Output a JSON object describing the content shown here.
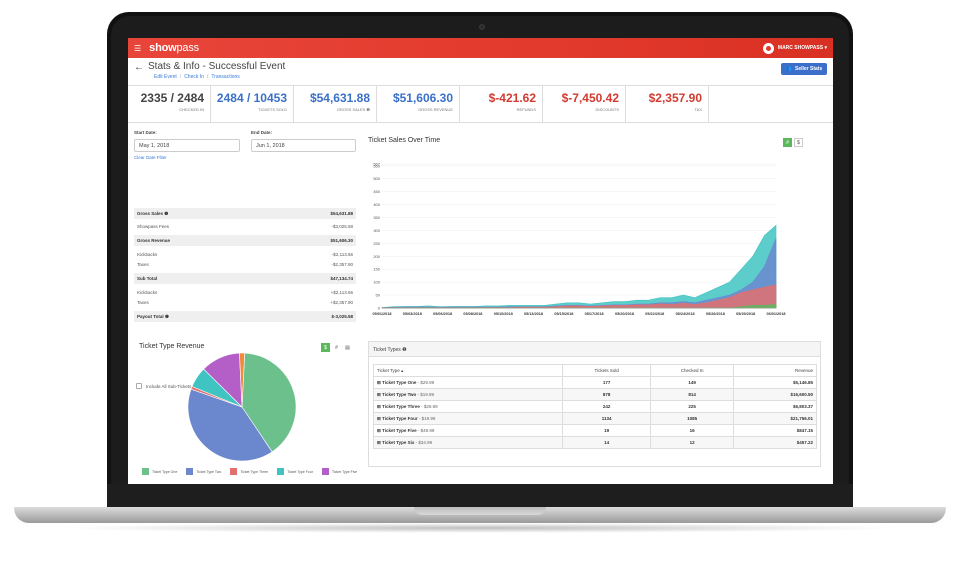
{
  "topbar": {
    "logo_bold": "show",
    "logo_light": "pass",
    "user_name": "MARC SHOWPASS ▾"
  },
  "header": {
    "title": "Stats & Info - Successful Event",
    "crumbs": [
      "Edit Event",
      "Check In",
      "Transactions"
    ],
    "seller_button": "Seller Stats"
  },
  "stats": [
    {
      "value": "2335 / 2484",
      "label": "CHECKED IN",
      "color": "dark"
    },
    {
      "value": "2484 / 10453",
      "label": "TICKETS SOLD",
      "color": "blue"
    },
    {
      "value": "$54,631.88",
      "label": "GROSS SALES ❶",
      "color": "blue"
    },
    {
      "value": "$51,606.30",
      "label": "GROSS REVENUE",
      "color": "blue"
    },
    {
      "value": "$-421.62",
      "label": "REFUNDS",
      "color": "red"
    },
    {
      "value": "$-7,450.42",
      "label": "DISCOUNTS",
      "color": "red"
    },
    {
      "value": "$2,357.90",
      "label": "TAX",
      "color": "red"
    }
  ],
  "filters": {
    "start_label": "Start Date:",
    "start_value": "May 1, 2018",
    "end_label": "End Date:",
    "end_value": "Jun 1, 2018",
    "clear": "Clear Date Filter"
  },
  "summary": [
    {
      "label": "Gross Sales ❶",
      "value": "$54,631.88",
      "bold": true,
      "top": 78
    },
    {
      "label": "Showpass Fees",
      "value": "-$3,025.58",
      "bold": false,
      "top": 91
    },
    {
      "label": "Gross Revenue",
      "value": "$51,606.30",
      "bold": true,
      "top": 105
    },
    {
      "label": "Kickbacks",
      "value": "-$2,113.66",
      "bold": false,
      "top": 119
    },
    {
      "label": "Taxes",
      "value": "-$2,357.90",
      "bold": false,
      "top": 129
    },
    {
      "label": "Sub Total",
      "value": "$47,134.74",
      "bold": true,
      "top": 143
    },
    {
      "label": "Kickbacks",
      "value": "+$2,113.66",
      "bold": false,
      "top": 157
    },
    {
      "label": "Taxes",
      "value": "+$2,357.90",
      "bold": false,
      "top": 167
    },
    {
      "label": "Payout Total ❶",
      "value": "$-3,025.58",
      "bold": true,
      "top": 181
    }
  ],
  "include_sub": "Include All Sub-Tickets in Total Count",
  "chart_data": [
    {
      "type": "area",
      "title": "Ticket Sales Over Time",
      "ylim": [
        0,
        557
      ],
      "yticks": [
        "0",
        "50",
        "100",
        "150",
        "200",
        "250",
        "300",
        "350",
        "400",
        "450",
        "500",
        "550",
        "557"
      ],
      "x_labels": [
        "05/01/2018",
        "05/03/2018",
        "05/06/2018",
        "05/08/2018",
        "05/10/2018",
        "05/13/2018",
        "05/15/2018",
        "05/17/2018",
        "05/20/2018",
        "05/22/2018",
        "05/24/2018",
        "05/26/2018",
        "05/29/2018",
        "06/01/2018"
      ],
      "series": [
        {
          "values": [
            2,
            5,
            6,
            6,
            8,
            5,
            6,
            6,
            6,
            8,
            8,
            10,
            10,
            10,
            10,
            15,
            20,
            20,
            15,
            20,
            25,
            25,
            30,
            30,
            40,
            40,
            50,
            40,
            60,
            80,
            100,
            150,
            200,
            280,
            320
          ],
          "color": "#3fc4c2"
        },
        {
          "values": [
            1,
            3,
            4,
            4,
            4,
            3,
            3,
            4,
            4,
            4,
            4,
            5,
            5,
            5,
            5,
            8,
            10,
            10,
            8,
            10,
            12,
            12,
            15,
            15,
            20,
            20,
            25,
            20,
            30,
            40,
            50,
            70,
            100,
            160,
            270
          ],
          "color": "#6b88cf"
        },
        {
          "values": [
            0,
            1,
            1,
            1,
            1,
            1,
            1,
            1,
            1,
            2,
            2,
            2,
            3,
            3,
            3,
            5,
            8,
            8,
            6,
            8,
            10,
            10,
            12,
            12,
            16,
            14,
            18,
            14,
            20,
            30,
            40,
            60,
            70,
            80,
            90
          ],
          "color": "#e36f6f"
        },
        {
          "values": [
            0,
            0,
            0,
            0,
            0,
            0,
            0,
            0,
            0,
            0,
            0,
            0,
            0,
            0,
            0,
            0,
            0,
            0,
            0,
            0,
            0,
            0,
            0,
            0,
            0,
            0,
            0,
            0,
            0,
            0,
            0,
            5,
            10,
            10,
            14
          ],
          "color": "#5cb85c"
        }
      ],
      "toggles": [
        "#",
        "$"
      ]
    },
    {
      "type": "pie",
      "title": "Ticket Type Revenue",
      "categories": [
        "Ticket Type One",
        "Ticket Type Two",
        "Ticket Type Three",
        "Ticket Type Four",
        "Ticket Type Five",
        "Ticket Type Six"
      ],
      "values": [
        5146.85,
        16600.5,
        6803.37,
        21756.01,
        847.15,
        457.22
      ],
      "colors": [
        "#6cc08b",
        "#6b88cf",
        "#e36f6f",
        "#3fc4c2",
        "#b45fc7",
        "#f08a3c"
      ],
      "toggles": [
        "$",
        "#",
        "▤"
      ]
    }
  ],
  "table": {
    "panel_title": "Ticket Types ❶",
    "headers": [
      "Ticket Type ▴",
      "Tickets Sold",
      "Checked In",
      "Revenue"
    ],
    "rows": [
      {
        "name": "⊞ Ticket Type One",
        "price": " - $29.99",
        "sold": "177",
        "checked": "149",
        "revenue": "$5,146.85"
      },
      {
        "name": "⊞ Ticket Type Two",
        "price": " - $19.99",
        "sold": "878",
        "checked": "814",
        "revenue": "$16,600.50"
      },
      {
        "name": "⊞ Ticket Type Three",
        "price": " - $29.99",
        "sold": "242",
        "checked": "225",
        "revenue": "$6,803.37"
      },
      {
        "name": "⊞ Ticket Type Four",
        "price": " - $19.99",
        "sold": "1134",
        "checked": "1085",
        "revenue": "$21,756.01"
      },
      {
        "name": "⊞ Ticket Type Five",
        "price": " - $49.99",
        "sold": "19",
        "checked": "16",
        "revenue": "$847.15"
      },
      {
        "name": "⊞ Ticket Type Six",
        "price": " - $34.99",
        "sold": "14",
        "checked": "12",
        "revenue": "$457.22"
      }
    ]
  }
}
